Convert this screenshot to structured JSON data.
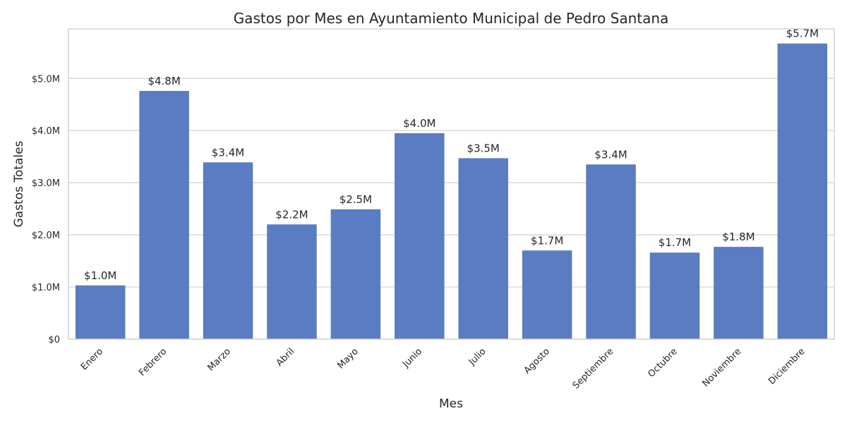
{
  "chart_data": {
    "type": "bar",
    "title": "Gastos por Mes en Ayuntamiento Municipal de Pedro Santana",
    "xlabel": "Mes",
    "ylabel": "Gastos Totales",
    "categories": [
      "Enero",
      "Febrero",
      "Marzo",
      "Abril",
      "Mayo",
      "Junio",
      "Julio",
      "Agosto",
      "Septiembre",
      "Octubre",
      "Noviembre",
      "Diciembre"
    ],
    "values": [
      1030000,
      4760000,
      3390000,
      2200000,
      2490000,
      3950000,
      3470000,
      1700000,
      3350000,
      1660000,
      1770000,
      5670000
    ],
    "data_labels": [
      "$1.0M",
      "$4.8M",
      "$3.4M",
      "$2.2M",
      "$2.5M",
      "$4.0M",
      "$3.5M",
      "$1.7M",
      "$3.4M",
      "$1.7M",
      "$1.8M",
      "$5.7M"
    ],
    "ylim": [
      0,
      5950000
    ],
    "yticks": [
      0,
      1000000,
      2000000,
      3000000,
      4000000,
      5000000
    ],
    "ytick_labels": [
      "$0",
      "$1.0M",
      "$2.0M",
      "$3.0M",
      "$4.0M",
      "$5.0M"
    ],
    "bar_color": "#5a7cc2",
    "grid": true
  }
}
